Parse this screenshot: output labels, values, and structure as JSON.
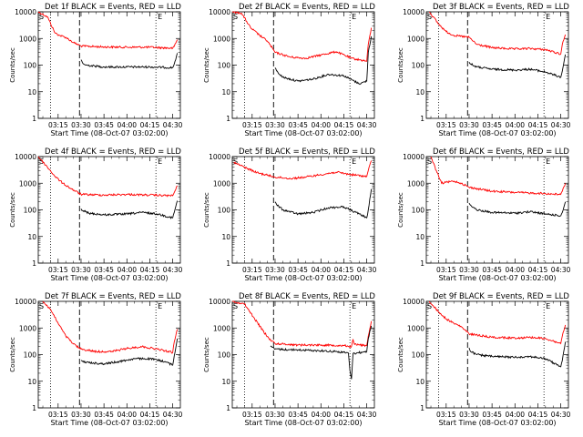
{
  "chart_data": [
    {
      "type": "line",
      "title": "Det 1f BLACK = Events, RED = LLD",
      "xlabel": "Start Time (08-Oct-07 03:02:00)",
      "ylabel": "Counts/sec",
      "ylim": [
        1,
        10000
      ],
      "yscale": "log",
      "grid": false,
      "x_ticks": [
        "03:15",
        "03:30",
        "03:45",
        "04:00",
        "04:15",
        "04:30"
      ],
      "y_ticks": [
        "1",
        "10",
        "100",
        "1000",
        "10000"
      ],
      "corner_labels": [
        "S",
        "E"
      ],
      "series": [
        {
          "color": "#ff0000",
          "x": [
            "03:02",
            "03:08",
            "03:13",
            "03:16",
            "03:20",
            "03:25",
            "03:30",
            "03:45",
            "04:00",
            "04:15",
            "04:30",
            "04:31",
            "04:33"
          ],
          "y": [
            10000,
            6500,
            1600,
            1300,
            1100,
            700,
            520,
            480,
            470,
            470,
            430,
            500,
            900
          ]
        },
        {
          "color": "#000000",
          "x": [
            "03:30",
            "03:31",
            "03:33",
            "03:45",
            "04:00",
            "04:15",
            "04:30",
            "04:31",
            "04:33"
          ],
          "y": [
            160,
            120,
            100,
            85,
            85,
            85,
            80,
            110,
            280
          ]
        }
      ]
    },
    {
      "type": "line",
      "title": "Det 2f BLACK = Events, RED = LLD",
      "xlabel": "Start Time (08-Oct-07 03:02:00)",
      "ylabel": "Counts/sec",
      "ylim": [
        1,
        10000
      ],
      "yscale": "log",
      "grid": false,
      "x_ticks": [
        "03:15",
        "03:30",
        "03:45",
        "04:00",
        "04:15",
        "04:30"
      ],
      "y_ticks": [
        "1",
        "10",
        "100",
        "1000",
        "10000"
      ],
      "corner_labels": [
        "S",
        "E"
      ],
      "series": [
        {
          "color": "#ff0000",
          "x": [
            "03:02",
            "03:08",
            "03:14",
            "03:20",
            "03:25",
            "03:30",
            "03:40",
            "03:50",
            "04:00",
            "04:10",
            "04:20",
            "04:30",
            "04:31",
            "04:33"
          ],
          "y": [
            10000,
            9000,
            2500,
            1300,
            800,
            300,
            200,
            180,
            240,
            320,
            180,
            140,
            600,
            2500
          ]
        },
        {
          "color": "#000000",
          "x": [
            "03:30",
            "03:31",
            "03:35",
            "03:45",
            "03:55",
            "04:05",
            "04:15",
            "04:25",
            "04:30",
            "04:31",
            "04:33"
          ],
          "y": [
            80,
            60,
            35,
            25,
            30,
            45,
            40,
            20,
            25,
            300,
            1200
          ]
        }
      ]
    },
    {
      "type": "line",
      "title": "Det 3f BLACK = Events, RED = LLD",
      "xlabel": "Start Time (08-Oct-07 03:02:00)",
      "ylabel": "Counts/sec",
      "ylim": [
        1,
        10000
      ],
      "yscale": "log",
      "grid": false,
      "x_ticks": [
        "03:15",
        "03:30",
        "03:45",
        "04:00",
        "04:15",
        "04:30"
      ],
      "y_ticks": [
        "1",
        "10",
        "100",
        "1000",
        "10000"
      ],
      "corner_labels": [
        "S",
        "E"
      ],
      "series": [
        {
          "color": "#ff0000",
          "x": [
            "03:04",
            "03:10",
            "03:15",
            "03:20",
            "03:30",
            "03:35",
            "03:45",
            "04:00",
            "04:10",
            "04:20",
            "04:30",
            "04:31",
            "04:33"
          ],
          "y": [
            10000,
            3500,
            1800,
            1300,
            1100,
            600,
            450,
            400,
            420,
            380,
            260,
            600,
            1400
          ]
        },
        {
          "color": "#000000",
          "x": [
            "03:30",
            "03:31",
            "03:35",
            "03:45",
            "04:00",
            "04:10",
            "04:20",
            "04:30",
            "04:31",
            "04:33"
          ],
          "y": [
            130,
            110,
            85,
            70,
            65,
            70,
            55,
            35,
            60,
            250
          ]
        }
      ]
    },
    {
      "type": "line",
      "title": "Det 4f BLACK = Events, RED = LLD",
      "xlabel": "Start Time (08-Oct-07 03:02:00)",
      "ylabel": "Counts/sec",
      "ylim": [
        1,
        10000
      ],
      "yscale": "log",
      "grid": false,
      "x_ticks": [
        "03:15",
        "03:30",
        "03:45",
        "04:00",
        "04:15",
        "04:30"
      ],
      "y_ticks": [
        "1",
        "10",
        "100",
        "1000",
        "10000"
      ],
      "corner_labels": [
        "S",
        "E"
      ],
      "series": [
        {
          "color": "#ff0000",
          "x": [
            "03:02",
            "03:08",
            "03:13",
            "03:18",
            "03:24",
            "03:30",
            "03:45",
            "04:00",
            "04:15",
            "04:30",
            "04:31",
            "04:33"
          ],
          "y": [
            10000,
            4000,
            1800,
            1000,
            600,
            380,
            360,
            380,
            360,
            340,
            450,
            800
          ]
        },
        {
          "color": "#000000",
          "x": [
            "03:30",
            "03:31",
            "03:35",
            "03:45",
            "04:00",
            "04:10",
            "04:20",
            "04:30",
            "04:31",
            "04:33"
          ],
          "y": [
            110,
            95,
            75,
            65,
            70,
            80,
            70,
            50,
            80,
            220
          ]
        }
      ]
    },
    {
      "type": "line",
      "title": "Det 5f BLACK = Events, RED = LLD",
      "xlabel": "Start Time (08-Oct-07 03:02:00)",
      "ylabel": "Counts/sec",
      "ylim": [
        1,
        10000
      ],
      "yscale": "log",
      "grid": false,
      "x_ticks": [
        "03:15",
        "03:30",
        "03:45",
        "04:00",
        "04:15",
        "04:30"
      ],
      "y_ticks": [
        "1",
        "10",
        "100",
        "1000",
        "10000"
      ],
      "corner_labels": [
        "S",
        "E"
      ],
      "series": [
        {
          "color": "#ff0000",
          "x": [
            "03:03",
            "03:10",
            "03:18",
            "03:25",
            "03:30",
            "03:40",
            "03:50",
            "04:00",
            "04:10",
            "04:20",
            "04:30",
            "04:31",
            "04:33"
          ],
          "y": [
            6000,
            4000,
            2500,
            2000,
            1700,
            1500,
            1700,
            2100,
            2600,
            2100,
            1800,
            3000,
            7000
          ]
        },
        {
          "color": "#000000",
          "x": [
            "03:30",
            "03:31",
            "03:35",
            "03:45",
            "03:55",
            "04:05",
            "04:15",
            "04:25",
            "04:30",
            "04:31",
            "04:33"
          ],
          "y": [
            200,
            160,
            100,
            70,
            80,
            120,
            130,
            70,
            50,
            100,
            600
          ]
        }
      ]
    },
    {
      "type": "line",
      "title": "Det 6f BLACK = Events, RED = LLD",
      "xlabel": "Start Time (08-Oct-07 03:02:00)",
      "ylabel": "Counts/sec",
      "ylim": [
        1,
        10000
      ],
      "yscale": "log",
      "grid": false,
      "x_ticks": [
        "03:15",
        "03:30",
        "03:45",
        "04:00",
        "04:15",
        "04:30"
      ],
      "y_ticks": [
        "1",
        "10",
        "100",
        "1000",
        "10000"
      ],
      "corner_labels": [
        "S",
        "E"
      ],
      "series": [
        {
          "color": "#ff0000",
          "x": [
            "03:05",
            "03:09",
            "03:12",
            "03:16",
            "03:20",
            "03:25",
            "03:30",
            "03:45",
            "04:00",
            "04:15",
            "04:30",
            "04:31",
            "04:33"
          ],
          "y": [
            10000,
            2500,
            1000,
            1100,
            1200,
            1000,
            700,
            500,
            450,
            420,
            380,
            500,
            1000
          ]
        },
        {
          "color": "#000000",
          "x": [
            "03:30",
            "03:31",
            "03:35",
            "03:45",
            "04:00",
            "04:10",
            "04:20",
            "04:30",
            "04:31",
            "04:33"
          ],
          "y": [
            180,
            150,
            100,
            80,
            75,
            85,
            70,
            60,
            80,
            200
          ]
        }
      ]
    },
    {
      "type": "line",
      "title": "Det 7f BLACK = Events, RED = LLD",
      "xlabel": "Start Time (08-Oct-07 03:02:00)",
      "ylabel": "Counts/sec",
      "ylim": [
        1,
        10000
      ],
      "yscale": "log",
      "grid": false,
      "x_ticks": [
        "03:15",
        "03:30",
        "03:45",
        "04:00",
        "04:15",
        "04:30"
      ],
      "y_ticks": [
        "1",
        "10",
        "100",
        "1000",
        "10000"
      ],
      "corner_labels": [
        "S",
        "E"
      ],
      "series": [
        {
          "color": "#ff0000",
          "x": [
            "03:05",
            "03:10",
            "03:15",
            "03:20",
            "03:25",
            "03:30",
            "03:40",
            "03:50",
            "04:00",
            "04:10",
            "04:20",
            "04:30",
            "04:31",
            "04:33"
          ],
          "y": [
            10000,
            5000,
            1500,
            500,
            250,
            160,
            130,
            130,
            170,
            200,
            160,
            120,
            300,
            900
          ]
        },
        {
          "color": "#000000",
          "x": [
            "03:30",
            "03:31",
            "03:35",
            "03:45",
            "03:55",
            "04:05",
            "04:15",
            "04:25",
            "04:30",
            "04:31",
            "04:33"
          ],
          "y": [
            60,
            55,
            50,
            45,
            55,
            70,
            70,
            55,
            40,
            90,
            400
          ]
        }
      ]
    },
    {
      "type": "line",
      "title": "Det 8f BLACK = Events, RED = LLD",
      "xlabel": "Start Time (08-Oct-07 03:02:00)",
      "ylabel": "Counts/sec",
      "ylim": [
        1,
        10000
      ],
      "yscale": "log",
      "grid": false,
      "x_ticks": [
        "03:15",
        "03:30",
        "03:45",
        "04:00",
        "04:15",
        "04:30"
      ],
      "y_ticks": [
        "1",
        "10",
        "100",
        "1000",
        "10000"
      ],
      "corner_labels": [
        "S",
        "E"
      ],
      "series": [
        {
          "color": "#ff0000",
          "x": [
            "03:02",
            "03:10",
            "03:16",
            "03:22",
            "03:26",
            "03:30",
            "03:45",
            "04:00",
            "04:15",
            "04:20",
            "04:21",
            "04:22",
            "04:30",
            "04:31",
            "04:33"
          ],
          "y": [
            10000,
            8000,
            2500,
            800,
            400,
            260,
            230,
            230,
            220,
            200,
            380,
            240,
            220,
            500,
            1800
          ]
        },
        {
          "color": "#000000",
          "x": [
            "03:27",
            "03:30",
            "03:45",
            "04:00",
            "04:10",
            "04:18",
            "04:19",
            "04:20",
            "04:21",
            "04:30",
            "04:31",
            "04:33"
          ],
          "y": [
            200,
            160,
            150,
            140,
            130,
            115,
            25,
            12,
            110,
            130,
            400,
            1200
          ]
        }
      ]
    },
    {
      "type": "line",
      "title": "Det 9f BLACK = Events, RED = LLD",
      "xlabel": "Start Time (08-Oct-07 03:02:00)",
      "ylabel": "Counts/sec",
      "ylim": [
        1,
        10000
      ],
      "yscale": "log",
      "grid": false,
      "x_ticks": [
        "03:15",
        "03:30",
        "03:45",
        "04:00",
        "04:15",
        "04:30"
      ],
      "y_ticks": [
        "1",
        "10",
        "100",
        "1000",
        "10000"
      ],
      "corner_labels": [
        "S",
        "E"
      ],
      "series": [
        {
          "color": "#ff0000",
          "x": [
            "03:04",
            "03:10",
            "03:15",
            "03:20",
            "03:25",
            "03:30",
            "03:45",
            "04:00",
            "04:10",
            "04:20",
            "04:30",
            "04:31",
            "04:33"
          ],
          "y": [
            10000,
            4000,
            2200,
            1500,
            1100,
            600,
            450,
            420,
            450,
            400,
            260,
            500,
            1300
          ]
        },
        {
          "color": "#000000",
          "x": [
            "03:30",
            "03:31",
            "03:35",
            "03:45",
            "04:00",
            "04:10",
            "04:20",
            "04:30",
            "04:31",
            "04:33"
          ],
          "y": [
            180,
            130,
            100,
            85,
            80,
            85,
            70,
            35,
            60,
            300
          ]
        }
      ]
    }
  ]
}
